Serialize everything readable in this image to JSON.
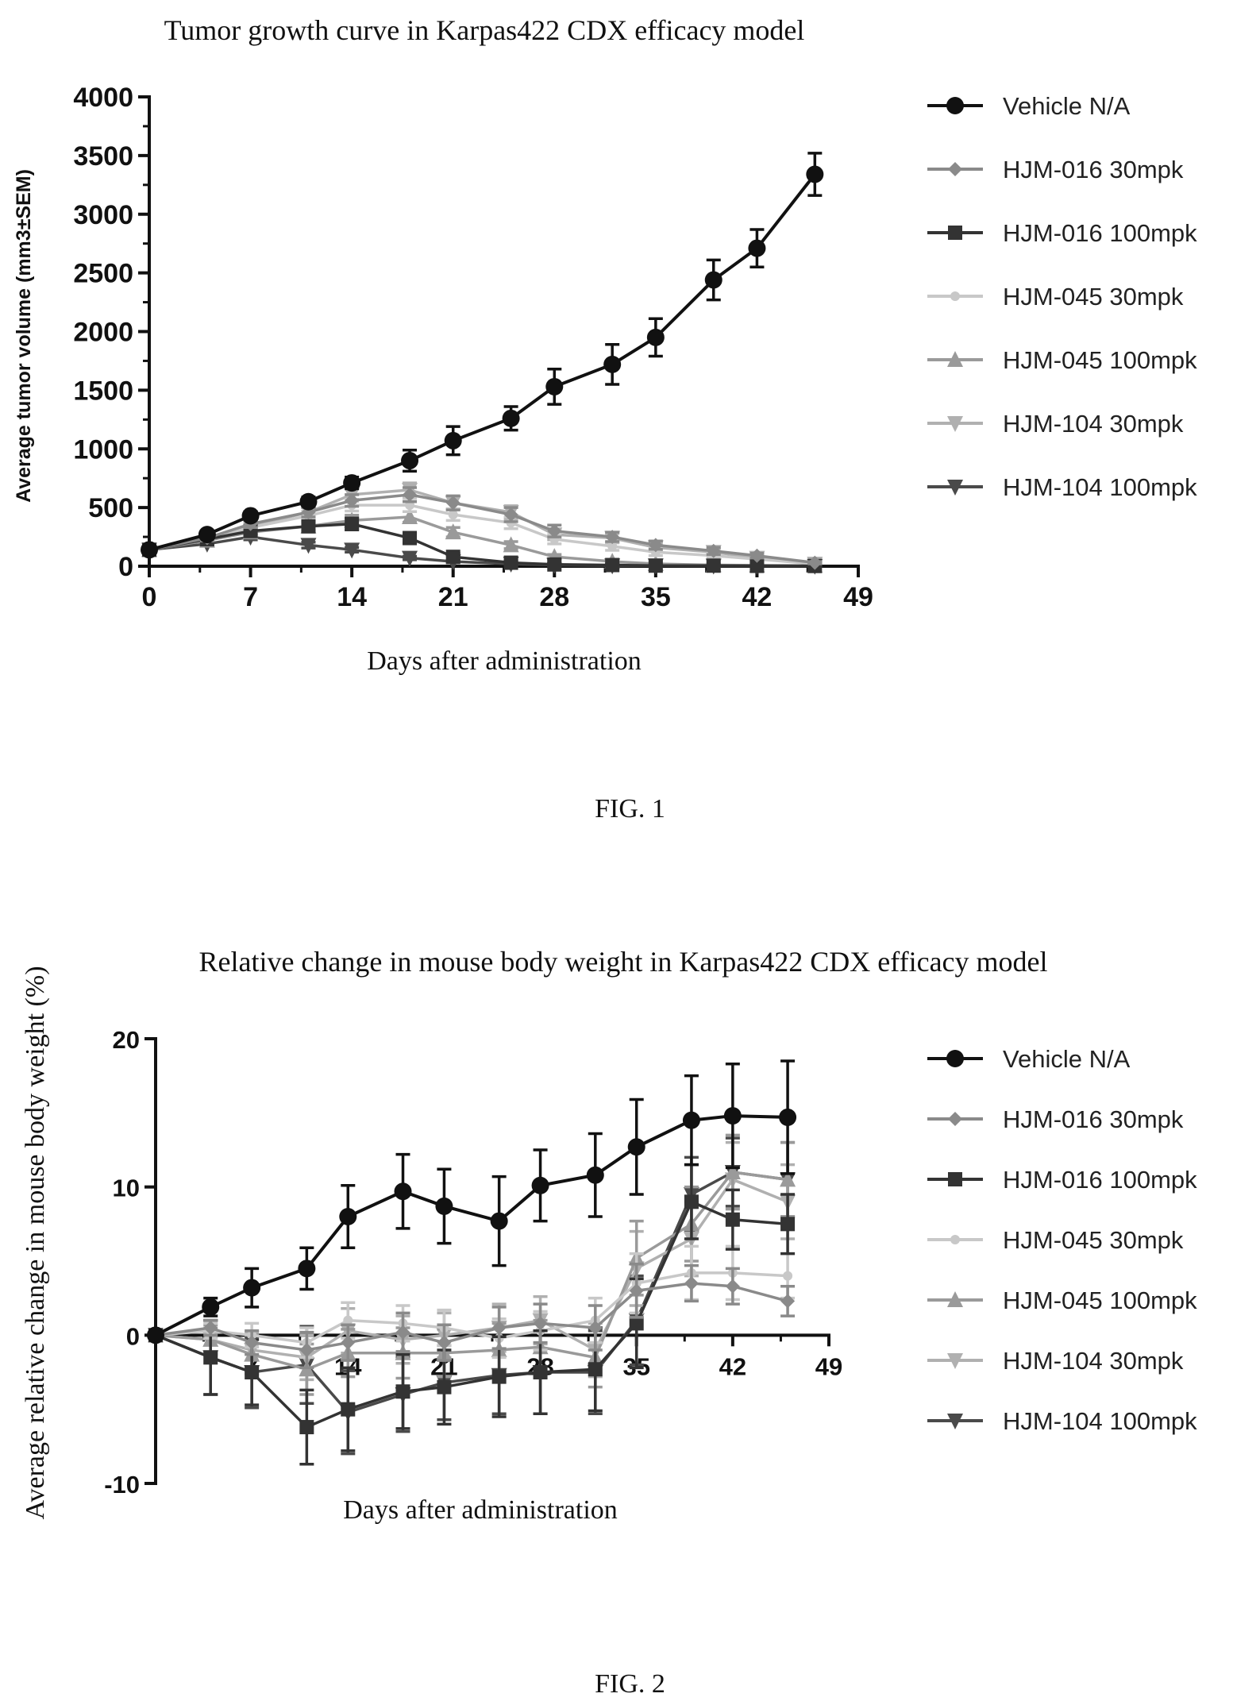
{
  "figure1": {
    "caption": "FIG. 1",
    "chart_data": {
      "type": "line",
      "title": "Tumor growth curve in Karpas422 CDX efficacy model",
      "xlabel": "Days after administration",
      "ylabel": "Average tumor volume (mm3±SEM)",
      "xlim": [
        0,
        49
      ],
      "ylim": [
        0,
        4000
      ],
      "xticks": [
        "0",
        "7",
        "14",
        "21",
        "28",
        "35",
        "42",
        "49"
      ],
      "yticks": [
        "0",
        "500",
        "1000",
        "1500",
        "2000",
        "2500",
        "3000",
        "3500",
        "4000"
      ],
      "legend_position": "right",
      "x": [
        0,
        4,
        7,
        11,
        14,
        18,
        21,
        25,
        28,
        32,
        35,
        39,
        42,
        46
      ],
      "series": [
        {
          "name": "Vehicle N/A",
          "marker": "circle",
          "color": "#111111",
          "values": [
            140,
            270,
            430,
            550,
            710,
            900,
            1070,
            1260,
            1530,
            1720,
            1950,
            2440,
            2710,
            3340
          ],
          "errors": [
            25,
            30,
            35,
            40,
            50,
            90,
            120,
            100,
            150,
            170,
            160,
            170,
            160,
            180
          ]
        },
        {
          "name": "HJM-016 30mpk",
          "marker": "diamond",
          "color": "#8a8a8a",
          "values": [
            140,
            240,
            360,
            460,
            560,
            610,
            540,
            440,
            300,
            250,
            180,
            130,
            90,
            30
          ],
          "errors": [
            20,
            25,
            30,
            40,
            50,
            60,
            60,
            60,
            50,
            40,
            35,
            30,
            20,
            10
          ]
        },
        {
          "name": "HJM-016 100mpk",
          "marker": "square",
          "color": "#333333",
          "values": [
            140,
            230,
            300,
            340,
            360,
            240,
            80,
            30,
            15,
            10,
            5,
            5,
            3,
            2
          ],
          "errors": [
            20,
            25,
            30,
            40,
            50,
            40,
            30,
            15,
            10,
            5,
            5,
            5,
            3,
            2
          ]
        },
        {
          "name": "HJM-045 30mpk",
          "marker": "circle-small",
          "color": "#c8c8c8",
          "values": [
            140,
            230,
            330,
            430,
            520,
            520,
            440,
            370,
            230,
            170,
            120,
            90,
            60,
            20
          ],
          "errors": [
            20,
            25,
            30,
            40,
            50,
            55,
            50,
            50,
            40,
            35,
            30,
            25,
            20,
            10
          ]
        },
        {
          "name": "HJM-045 100mpk",
          "marker": "triangle-up",
          "color": "#9a9a9a",
          "values": [
            140,
            220,
            290,
            340,
            390,
            420,
            290,
            180,
            80,
            40,
            20,
            10,
            8,
            5
          ],
          "errors": [
            20,
            25,
            30,
            35,
            45,
            45,
            40,
            30,
            20,
            15,
            10,
            8,
            5,
            3
          ]
        },
        {
          "name": "HJM-104 30mpk",
          "marker": "triangle-down",
          "color": "#b0b0b0",
          "values": [
            140,
            240,
            340,
            460,
            610,
            650,
            540,
            460,
            270,
            240,
            160,
            120,
            70,
            20
          ],
          "errors": [
            20,
            25,
            30,
            40,
            55,
            60,
            55,
            55,
            45,
            40,
            35,
            30,
            20,
            10
          ]
        },
        {
          "name": "HJM-104 100mpk",
          "marker": "triangle-down",
          "color": "#4a4a4a",
          "values": [
            140,
            190,
            250,
            180,
            140,
            70,
            40,
            20,
            10,
            5,
            5,
            3,
            2,
            2
          ],
          "errors": [
            20,
            20,
            25,
            25,
            20,
            15,
            10,
            8,
            5,
            3,
            3,
            2,
            2,
            2
          ]
        }
      ]
    }
  },
  "figure2": {
    "caption": "FIG. 2",
    "chart_data": {
      "type": "line",
      "title": "Relative change in mouse body weight in Karpas422 CDX efficacy model",
      "xlabel": "Days after administration",
      "ylabel": "Average relative change in mouse body weight (%)",
      "xlim": [
        0,
        49
      ],
      "ylim": [
        -10,
        20
      ],
      "xticks": [
        "7",
        "14",
        "21",
        "28",
        "35",
        "42",
        "49"
      ],
      "yticks": [
        "-10",
        "0",
        "10",
        "20"
      ],
      "legend_position": "right",
      "x": [
        0,
        4,
        7,
        11,
        14,
        18,
        21,
        25,
        28,
        32,
        35,
        39,
        42,
        46
      ],
      "series": [
        {
          "name": "Vehicle N/A",
          "marker": "circle",
          "color": "#111111",
          "values": [
            0,
            1.9,
            3.2,
            4.5,
            8.0,
            9.7,
            8.7,
            7.7,
            10.1,
            10.8,
            12.7,
            14.5,
            14.8,
            14.7
          ],
          "errors": [
            0,
            0.6,
            1.3,
            1.4,
            2.1,
            2.5,
            2.5,
            3.0,
            2.4,
            2.8,
            3.2,
            3.0,
            3.5,
            3.8
          ]
        },
        {
          "name": "HJM-016 30mpk",
          "marker": "diamond",
          "color": "#8a8a8a",
          "values": [
            0,
            0.5,
            -0.5,
            -1.0,
            -0.5,
            0.2,
            -0.5,
            0.5,
            0.8,
            0.5,
            3.0,
            3.5,
            3.3,
            2.3
          ],
          "errors": [
            0,
            0.5,
            0.8,
            1.2,
            1.2,
            1.3,
            1.2,
            1.4,
            1.3,
            1.5,
            1.8,
            1.2,
            1.2,
            1.0
          ]
        },
        {
          "name": "HJM-016 100mpk",
          "marker": "square",
          "color": "#333333",
          "values": [
            0,
            -1.5,
            -2.5,
            -6.2,
            -5.0,
            -3.8,
            -3.5,
            -2.8,
            -2.5,
            -2.3,
            0.8,
            9.0,
            7.8,
            7.5
          ],
          "errors": [
            0,
            2.5,
            2.2,
            2.5,
            2.8,
            2.5,
            2.5,
            2.7,
            2.8,
            2.8,
            3.0,
            2.5,
            2.0,
            2.0
          ]
        },
        {
          "name": "HJM-045 30mpk",
          "marker": "circle-small",
          "color": "#c8c8c8",
          "values": [
            0,
            0.3,
            0.0,
            -0.5,
            1.0,
            0.8,
            0.5,
            -0.2,
            0.3,
            1.0,
            3.5,
            4.2,
            4.2,
            4.0
          ],
          "errors": [
            0,
            0.5,
            0.8,
            1.0,
            1.2,
            1.2,
            1.2,
            1.3,
            1.3,
            1.5,
            2.0,
            1.8,
            1.8,
            1.5
          ]
        },
        {
          "name": "HJM-045 100mpk",
          "marker": "triangle-up",
          "color": "#9a9a9a",
          "values": [
            0,
            -0.3,
            -1.3,
            -2.3,
            -1.2,
            -1.2,
            -1.2,
            -1.0,
            -0.8,
            -1.5,
            5.2,
            7.5,
            11.0,
            10.5
          ],
          "errors": [
            0,
            1.0,
            1.3,
            1.7,
            1.6,
            1.7,
            1.6,
            1.8,
            1.8,
            2.0,
            2.5,
            2.5,
            2.5,
            2.5
          ]
        },
        {
          "name": "HJM-104 30mpk",
          "marker": "triangle-down",
          "color": "#b0b0b0",
          "values": [
            0,
            -0.3,
            -1.0,
            -1.5,
            0.3,
            -0.3,
            0.0,
            0.5,
            1.0,
            -1.0,
            4.5,
            6.5,
            10.5,
            9.0
          ],
          "errors": [
            0,
            0.8,
            1.2,
            1.5,
            1.5,
            1.6,
            1.5,
            1.6,
            1.6,
            1.8,
            2.5,
            2.5,
            2.5,
            2.5
          ]
        },
        {
          "name": "HJM-104 100mpk",
          "marker": "triangle-down",
          "color": "#4a4a4a",
          "values": [
            0,
            -1.5,
            -2.5,
            -2.0,
            -5.2,
            -4.0,
            -3.2,
            -2.7,
            -2.5,
            -2.5,
            1.0,
            9.5,
            11.0,
            10.5
          ],
          "errors": [
            0,
            2.5,
            2.4,
            2.6,
            2.8,
            2.5,
            2.5,
            2.6,
            2.8,
            2.8,
            3.0,
            2.5,
            2.3,
            2.5
          ]
        }
      ]
    }
  }
}
